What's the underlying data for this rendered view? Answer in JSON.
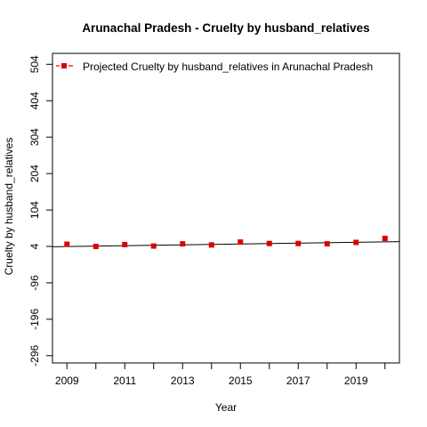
{
  "chart_data": {
    "type": "scatter",
    "title": "Arunachal Pradesh  -  Cruelty by husband_relatives",
    "xlabel": "Year",
    "ylabel": "Cruelty by husband_relatives",
    "x_ticks": [
      "2009",
      "2011",
      "2013",
      "2015",
      "2017",
      "2019"
    ],
    "y_ticks": [
      "-296",
      "-196",
      "-96",
      "4",
      "104",
      "204",
      "304",
      "404",
      "504"
    ],
    "xlim": [
      2008.5,
      2020.5
    ],
    "ylim": [
      -316,
      534
    ],
    "legend": {
      "label": "Projected  Cruelty by husband_relatives  in  Arunachal Pradesh",
      "placement": "top-left"
    },
    "series": [
      {
        "name": "Projected  Cruelty by husband_relatives  in  Arunachal Pradesh",
        "color": "#dd0000",
        "x": [
          2009,
          2010,
          2011,
          2012,
          2013,
          2014,
          2015,
          2016,
          2017,
          2018,
          2019,
          2020
        ],
        "y": [
          10,
          4,
          9,
          5,
          11,
          8,
          16,
          12,
          12,
          11,
          15,
          26
        ]
      }
    ],
    "trend_line": {
      "color": "#000000",
      "x": [
        2008.5,
        2020.5
      ],
      "y": [
        3,
        17
      ]
    }
  }
}
